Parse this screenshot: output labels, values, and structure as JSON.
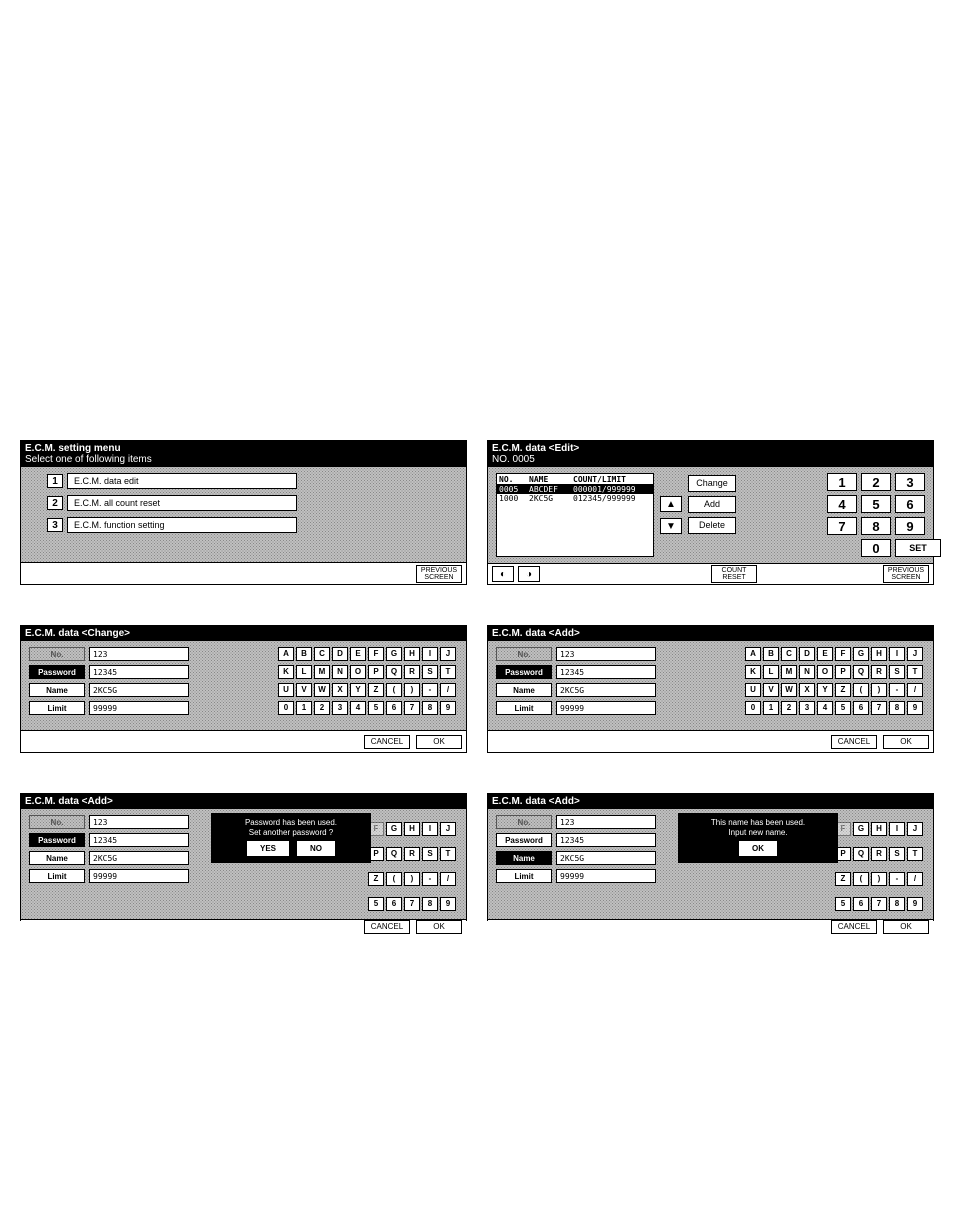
{
  "menu": {
    "title": "E.C.M. setting menu",
    "subtitle": "Select one of following items",
    "items": [
      {
        "num": "1",
        "label": "E.C.M. data edit"
      },
      {
        "num": "2",
        "label": "E.C.M. all count reset"
      },
      {
        "num": "3",
        "label": "E.C.M. function setting"
      }
    ],
    "prev_screen": "PREVIOUS\nSCREEN"
  },
  "edit": {
    "title": "E.C.M. data <Edit>",
    "subtitle": "NO. 0005",
    "columns": {
      "no": "NO.",
      "name": "NAME",
      "count": "COUNT/LIMIT"
    },
    "rows": [
      {
        "no": "0005",
        "name": "ABCDEF",
        "count": "000001/999999",
        "sel": true
      },
      {
        "no": "1000",
        "name": "2KC5G",
        "count": "012345/999999",
        "sel": false
      }
    ],
    "change": "Change",
    "add": "Add",
    "delete": "Delete",
    "count_reset": "COUNT\nRESET",
    "prev_screen": "PREVIOUS\nSCREEN",
    "set": "SET",
    "numpad": [
      "1",
      "2",
      "3",
      "4",
      "5",
      "6",
      "7",
      "8",
      "9",
      "",
      "0",
      ""
    ]
  },
  "form_change": {
    "title": "E.C.M. data <Change>",
    "fields": {
      "no": {
        "label": "No.",
        "value": "123"
      },
      "password": {
        "label": "Password",
        "value": "12345"
      },
      "name": {
        "label": "Name",
        "value": "2KC5G"
      },
      "limit": {
        "label": "Limit",
        "value": "99999"
      }
    },
    "active": "password",
    "cancel": "CANCEL",
    "ok": "OK"
  },
  "form_add": {
    "title": "E.C.M. data <Add>",
    "fields": {
      "no": {
        "label": "No.",
        "value": "123"
      },
      "password": {
        "label": "Password",
        "value": "12345"
      },
      "name": {
        "label": "Name",
        "value": "2KC5G"
      },
      "limit": {
        "label": "Limit",
        "value": "99999"
      }
    },
    "active": "password",
    "cancel": "CANCEL",
    "ok": "OK"
  },
  "form_add_pw": {
    "title": "E.C.M. data <Add>",
    "fields": {
      "no": {
        "label": "No.",
        "value": "123"
      },
      "password": {
        "label": "Password",
        "value": "12345"
      },
      "name": {
        "label": "Name",
        "value": "2KC5G"
      },
      "limit": {
        "label": "Limit",
        "value": "99999"
      }
    },
    "active": "password",
    "modal_msg": "Password has been used.\nSet another password ?",
    "yes": "YES",
    "no_btn": "NO",
    "cancel": "CANCEL",
    "ok": "OK"
  },
  "form_add_name": {
    "title": "E.C.M. data <Add>",
    "fields": {
      "no": {
        "label": "No.",
        "value": "123"
      },
      "password": {
        "label": "Password",
        "value": "12345"
      },
      "name": {
        "label": "Name",
        "value": "2KC5G"
      },
      "limit": {
        "label": "Limit",
        "value": "99999"
      }
    },
    "active": "name",
    "modal_msg": "This name has been used.\nInput new name.",
    "ok_btn": "OK",
    "cancel": "CANCEL",
    "ok": "OK"
  },
  "keys": {
    "r1": [
      "A",
      "B",
      "C",
      "D",
      "E",
      "F",
      "G",
      "H",
      "I",
      "J"
    ],
    "r2": [
      "K",
      "L",
      "M",
      "N",
      "O",
      "P",
      "Q",
      "R",
      "S",
      "T"
    ],
    "r3": [
      "U",
      "V",
      "W",
      "X",
      "Y",
      "Z",
      "(",
      ")",
      "-",
      "/"
    ],
    "r4": [
      "0",
      "1",
      "2",
      "3",
      "4",
      "5",
      "6",
      "7",
      "8",
      "9"
    ]
  },
  "keys_tail": {
    "r1": [
      "F",
      "G",
      "H",
      "I",
      "J"
    ],
    "r2": [
      "P",
      "Q",
      "R",
      "S",
      "T"
    ],
    "r3": [
      "Z",
      "(",
      ")",
      "-",
      "/"
    ],
    "r4": [
      "5",
      "6",
      "7",
      "8",
      "9"
    ]
  }
}
